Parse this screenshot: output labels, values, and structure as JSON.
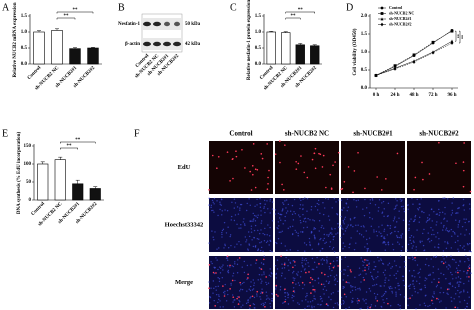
{
  "chart_data": [
    {
      "type": "bar",
      "panel": "A",
      "ylabel": "Relative NUCB2 mRNA expression",
      "categories": [
        "Control",
        "sh-NUCB2 NC",
        "sh-NUCB2#1",
        "sh-NUCB2#2"
      ],
      "values": [
        1.0,
        1.05,
        0.48,
        0.5
      ],
      "errors": [
        0.04,
        0.05,
        0.03,
        0.02
      ],
      "colors": [
        "#ffffff",
        "#ffffff",
        "#111111",
        "#111111"
      ],
      "ylim": [
        0,
        1.5
      ],
      "yticks": [
        {
          "value": 0,
          "label": "0.0"
        },
        {
          "value": 0.5,
          "label": "0.5"
        },
        {
          "value": 1,
          "label": "1.0"
        },
        {
          "value": 1.5,
          "label": "1.5"
        }
      ],
      "annotations": [
        "**",
        "**"
      ]
    },
    {
      "type": "bar",
      "panel": "C",
      "ylabel": "Relative nesfatin-1 protein expression",
      "categories": [
        "Control",
        "sh-NUCB2 NC",
        "sh-NUCB2#1",
        "sh-NUCB2#2"
      ],
      "values": [
        1.0,
        0.98,
        0.6,
        0.57
      ],
      "errors": [
        0.02,
        0.03,
        0.04,
        0.03
      ],
      "colors": [
        "#ffffff",
        "#ffffff",
        "#111111",
        "#111111"
      ],
      "ylim": [
        0,
        1.5
      ],
      "yticks": [
        {
          "value": 0,
          "label": "0.0"
        },
        {
          "value": 0.5,
          "label": "0.5"
        },
        {
          "value": 1,
          "label": "1.0"
        },
        {
          "value": 1.5,
          "label": "1.5"
        }
      ],
      "annotations": [
        "**",
        "**"
      ]
    },
    {
      "type": "line",
      "panel": "D",
      "ylabel": "Cell viability (OD450)",
      "categories": [
        "0 h",
        "24 h",
        "48 h",
        "72 h",
        "96 h"
      ],
      "series": [
        {
          "name": "Control",
          "color": "#000000",
          "marker": "circle",
          "values": [
            0.35,
            0.6,
            0.9,
            1.25,
            1.6
          ]
        },
        {
          "name": "sh-NUCB2 NC",
          "color": "#000000",
          "marker": "square",
          "values": [
            0.35,
            0.62,
            0.92,
            1.27,
            1.58
          ]
        },
        {
          "name": "sh-NUCB2#1",
          "color": "#000000",
          "marker": "triangle",
          "values": [
            0.35,
            0.55,
            0.75,
            1.0,
            1.3
          ]
        },
        {
          "name": "sh-NUCB2#2",
          "color": "#000000",
          "marker": "diamond",
          "values": [
            0.35,
            0.53,
            0.72,
            0.98,
            1.25
          ]
        }
      ],
      "ylim": [
        0,
        2
      ],
      "yticks": [
        {
          "value": 0,
          "label": "0.0"
        },
        {
          "value": 0.5,
          "label": "0.5"
        },
        {
          "value": 1,
          "label": "1.0"
        },
        {
          "value": 1.5,
          "label": "1.5"
        },
        {
          "value": 2,
          "label": "2.0"
        }
      ],
      "annotations": [
        "**",
        "**"
      ]
    },
    {
      "type": "bar",
      "panel": "E",
      "ylabel": "DNA synthesis (% EdU incorporation)",
      "categories": [
        "Control",
        "sh-NUCB2 NC",
        "sh-NUCB2#1",
        "sh-NUCB2#2"
      ],
      "values": [
        100,
        112,
        45,
        32
      ],
      "errors": [
        6,
        7,
        10,
        5
      ],
      "colors": [
        "#ffffff",
        "#ffffff",
        "#111111",
        "#111111"
      ],
      "ylim": [
        0,
        150
      ],
      "yticks": [
        0,
        50,
        100,
        150
      ],
      "annotations": [
        "**",
        "**"
      ]
    }
  ],
  "blot": {
    "panel": "B",
    "bands": [
      {
        "label": "Nesfatin-1",
        "size": "50 kDa"
      },
      {
        "label": "β-actin",
        "size": "42 kDa"
      }
    ],
    "lanes": [
      "Control",
      "sh-NUCB2 NC",
      "sh-NUCB2#1",
      "sh-NUCB2#2"
    ]
  },
  "micrographs": {
    "panel": "F",
    "columns": [
      "Control",
      "sh-NUCB2 NC",
      "sh-NUCB2#1",
      "sh-NUCB2#2"
    ],
    "rows": [
      "EdU",
      "Hoechst33342",
      "Merge"
    ]
  }
}
